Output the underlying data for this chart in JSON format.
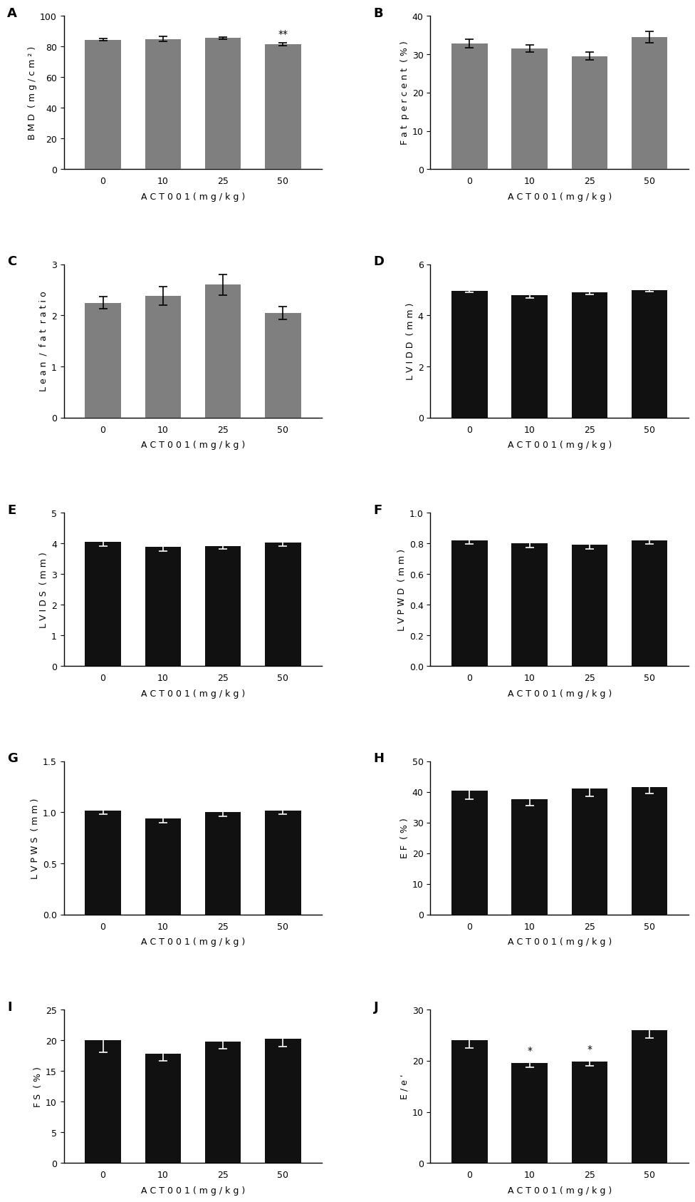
{
  "panels": [
    {
      "label": "A",
      "ylabel": "B M D  ( m g / c m ² )",
      "xlabel": "A C T 0 0 1 ( m g / k g )",
      "categories": [
        "0",
        "10",
        "25",
        "50"
      ],
      "values": [
        84.5,
        85.0,
        85.5,
        81.5
      ],
      "errors": [
        0.7,
        1.5,
        0.8,
        1.0
      ],
      "ylim": [
        0,
        100
      ],
      "yticks": [
        0,
        20,
        40,
        60,
        80,
        100
      ],
      "bar_color": "#7f7f7f",
      "significance": {
        "3": "**"
      },
      "ecolor": "black"
    },
    {
      "label": "B",
      "ylabel": "F a t  p e r c e n t  ( % )",
      "xlabel": "A C T 0 0 1 ( m g / k g )",
      "categories": [
        "0",
        "10",
        "25",
        "50"
      ],
      "values": [
        32.8,
        31.5,
        29.5,
        34.5
      ],
      "errors": [
        1.2,
        1.0,
        1.0,
        1.5
      ],
      "ylim": [
        0,
        40
      ],
      "yticks": [
        0,
        10,
        20,
        30,
        40
      ],
      "bar_color": "#7f7f7f",
      "significance": {},
      "ecolor": "black"
    },
    {
      "label": "C",
      "ylabel": "L e a n  /  f a t  r a t i o",
      "xlabel": "A C T 0 0 1 ( m g / k g )",
      "categories": [
        "0",
        "10",
        "25",
        "50"
      ],
      "values": [
        2.25,
        2.38,
        2.6,
        2.05
      ],
      "errors": [
        0.12,
        0.18,
        0.2,
        0.13
      ],
      "ylim": [
        0,
        3
      ],
      "yticks": [
        0,
        1,
        2,
        3
      ],
      "bar_color": "#7f7f7f",
      "significance": {},
      "ecolor": "black"
    },
    {
      "label": "D",
      "ylabel": "L V I D D  ( m m )",
      "xlabel": "A C T 0 0 1 ( m g / k g )",
      "categories": [
        "0",
        "10",
        "25",
        "50"
      ],
      "values": [
        4.97,
        4.78,
        4.9,
        5.0
      ],
      "errors": [
        0.06,
        0.09,
        0.08,
        0.06
      ],
      "ylim": [
        0,
        6
      ],
      "yticks": [
        0,
        2,
        4,
        6
      ],
      "bar_color": "#111111",
      "significance": {},
      "ecolor": "white"
    },
    {
      "label": "E",
      "ylabel": "L V I D S  ( m m )",
      "xlabel": "A C T 0 0 1 ( m g / k g )",
      "categories": [
        "0",
        "10",
        "25",
        "50"
      ],
      "values": [
        4.05,
        3.88,
        3.92,
        4.02
      ],
      "errors": [
        0.14,
        0.12,
        0.1,
        0.1
      ],
      "ylim": [
        0,
        5
      ],
      "yticks": [
        0,
        1,
        2,
        3,
        4,
        5
      ],
      "bar_color": "#111111",
      "significance": {},
      "ecolor": "white"
    },
    {
      "label": "F",
      "ylabel": "L V P W D  ( m m )",
      "xlabel": "A C T 0 0 1 ( m g / k g )",
      "categories": [
        "0",
        "10",
        "25",
        "50"
      ],
      "values": [
        0.82,
        0.8,
        0.79,
        0.82
      ],
      "errors": [
        0.025,
        0.025,
        0.025,
        0.025
      ],
      "ylim": [
        0.0,
        1.0
      ],
      "yticks": [
        0.0,
        0.2,
        0.4,
        0.6,
        0.8,
        1.0
      ],
      "bar_color": "#111111",
      "significance": {},
      "ecolor": "white"
    },
    {
      "label": "G",
      "ylabel": "L V P W S  ( m m )",
      "xlabel": "A C T 0 0 1 ( m g / k g )",
      "categories": [
        "0",
        "10",
        "25",
        "50"
      ],
      "values": [
        1.02,
        0.94,
        1.0,
        1.02
      ],
      "errors": [
        0.04,
        0.04,
        0.04,
        0.04
      ],
      "ylim": [
        0.0,
        1.5
      ],
      "yticks": [
        0.0,
        0.5,
        1.0,
        1.5
      ],
      "bar_color": "#111111",
      "significance": {},
      "ecolor": "white"
    },
    {
      "label": "H",
      "ylabel": "E F  ( % )",
      "xlabel": "A C T 0 0 1 ( m g / k g )",
      "categories": [
        "0",
        "10",
        "25",
        "50"
      ],
      "values": [
        40.5,
        37.5,
        41.0,
        41.5
      ],
      "errors": [
        3.0,
        2.0,
        2.5,
        2.0
      ],
      "ylim": [
        0,
        50
      ],
      "yticks": [
        0,
        10,
        20,
        30,
        40,
        50
      ],
      "bar_color": "#111111",
      "significance": {},
      "ecolor": "white"
    },
    {
      "label": "I",
      "ylabel": "F S  ( % )",
      "xlabel": "A C T 0 0 1 ( m g / k g )",
      "categories": [
        "0",
        "10",
        "25",
        "50"
      ],
      "values": [
        20.0,
        17.8,
        19.8,
        20.2
      ],
      "errors": [
        2.0,
        1.2,
        1.2,
        1.2
      ],
      "ylim": [
        0,
        25
      ],
      "yticks": [
        0,
        5,
        10,
        15,
        20,
        25
      ],
      "bar_color": "#111111",
      "significance": {},
      "ecolor": "white"
    },
    {
      "label": "J",
      "ylabel": "E / e '",
      "xlabel": "A C T 0 0 1 ( m g / k g )",
      "categories": [
        "0",
        "10",
        "25",
        "50"
      ],
      "values": [
        24.0,
        19.5,
        19.8,
        26.0
      ],
      "errors": [
        1.5,
        0.8,
        0.8,
        1.5
      ],
      "ylim": [
        0,
        30
      ],
      "yticks": [
        0,
        10,
        20,
        30
      ],
      "bar_color": "#111111",
      "significance": {
        "1": "*",
        "2": "*"
      },
      "ecolor": "white"
    }
  ],
  "background_color": "#ffffff",
  "label_fontsize": 13,
  "tick_fontsize": 9,
  "xlabel_fontsize": 9,
  "ylabel_fontsize": 9
}
